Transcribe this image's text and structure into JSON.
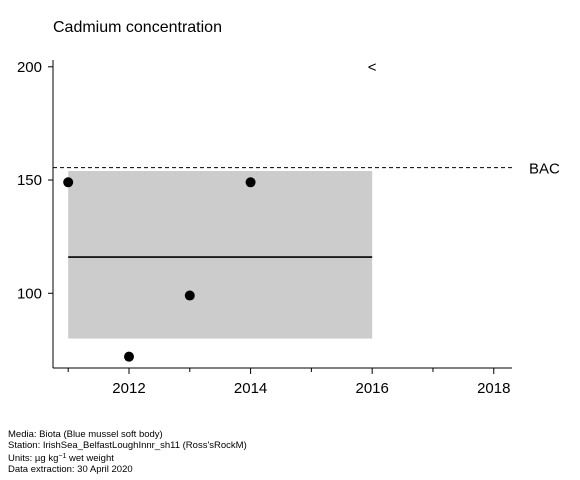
{
  "chart_data": {
    "type": "scatter",
    "title": "Cadmium concentration",
    "xlabel": "",
    "ylabel": "",
    "xlim": [
      2010.75,
      2018.3
    ],
    "ylim": [
      67,
      203
    ],
    "x_ticks": [
      2011,
      2012,
      2013,
      2014,
      2015,
      2016,
      2017,
      2018
    ],
    "x_tick_labels": [
      {
        "value": 2012,
        "label": "2012"
      },
      {
        "value": 2014,
        "label": "2014"
      },
      {
        "value": 2016,
        "label": "2016"
      },
      {
        "value": 2018,
        "label": "2018"
      }
    ],
    "y_ticks": [
      {
        "value": 100,
        "label": "100"
      },
      {
        "value": 150,
        "label": "150"
      },
      {
        "value": 200,
        "label": "200"
      }
    ],
    "points": [
      {
        "x": 2011,
        "y": 149
      },
      {
        "x": 2012,
        "y": 72
      },
      {
        "x": 2013,
        "y": 99
      },
      {
        "x": 2014,
        "y": 149
      }
    ],
    "trend": {
      "x_start": 2011,
      "x_end": 2016,
      "y": 116
    },
    "confidence_band": {
      "x_start": 2011,
      "x_end": 2016,
      "y_low": 80,
      "y_high": 154
    },
    "reference_line": {
      "y": 155.5,
      "label": "BAC",
      "style": "dashed"
    },
    "annotation": {
      "x": 2016,
      "y": 200,
      "text": "<"
    },
    "grid": false,
    "colors": {
      "band": "#cccccc",
      "points": "#000000",
      "lines": "#000000"
    }
  },
  "footer": {
    "media": "Media: Biota (Blue mussel soft body)",
    "station": "Station: IrishSea_BelfastLoughInnr_sh11 (Ross'sRockM)",
    "units_prefix": "Units:  µg kg",
    "units_sup": "−1",
    "units_suffix": " wet weight",
    "extraction": "Data extraction: 30 April 2020"
  }
}
